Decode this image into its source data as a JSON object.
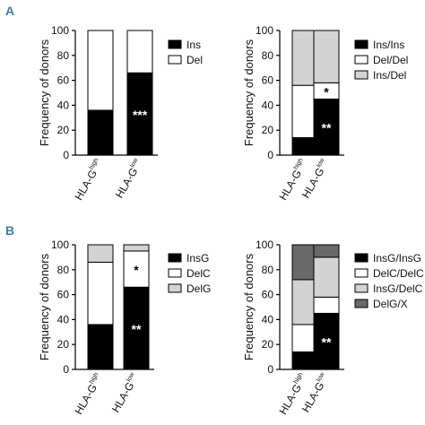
{
  "panels": [
    {
      "letter": "A"
    },
    {
      "letter": "B"
    }
  ],
  "colors": {
    "Ins": "#000000",
    "Del": "#ffffff",
    "Ins/Ins": "#000000",
    "Del/Del": "#ffffff",
    "Ins/Del": "#d3d3d3",
    "InsG": "#000000",
    "DelC": "#ffffff",
    "DelG": "#d3d3d3",
    "InsG/InsG": "#000000",
    "DelC/DelC": "#ffffff",
    "InsG/DelC": "#d3d3d3",
    "DelG/X": "#696969"
  },
  "chart_data": [
    {
      "type": "bar",
      "stacked": true,
      "panel": "A",
      "ylabel": "Frequency of donors",
      "ylim": [
        0,
        100
      ],
      "yticks": [
        0,
        20,
        40,
        60,
        80,
        100
      ],
      "categories": [
        {
          "base": "HLA-G",
          "sup": "high"
        },
        {
          "base": "HLA-G",
          "sup": "low"
        }
      ],
      "series": [
        {
          "name": "Ins",
          "values": [
            36,
            66
          ]
        },
        {
          "name": "Del",
          "values": [
            64,
            34
          ]
        }
      ],
      "annotations": [
        {
          "category": 1,
          "series": "Ins",
          "text": "***"
        }
      ],
      "legend": [
        "Ins",
        "Del"
      ]
    },
    {
      "type": "bar",
      "stacked": true,
      "panel": "A",
      "ylabel": "Frequency of donors",
      "ylim": [
        0,
        100
      ],
      "yticks": [
        0,
        20,
        40,
        60,
        80,
        100
      ],
      "categories": [
        {
          "base": "HLA-G",
          "sup": "high"
        },
        {
          "base": "HLA-G",
          "sup": "low"
        }
      ],
      "series": [
        {
          "name": "Ins/Ins",
          "values": [
            14,
            45
          ]
        },
        {
          "name": "Del/Del",
          "values": [
            42,
            13
          ]
        },
        {
          "name": "Ins/Del",
          "values": [
            44,
            42
          ]
        }
      ],
      "annotations": [
        {
          "category": 1,
          "series": "Ins/Ins",
          "text": "**"
        },
        {
          "category": 1,
          "series": "Del/Del",
          "text": "*"
        }
      ],
      "legend": [
        "Ins/Ins",
        "Del/Del",
        "Ins/Del"
      ]
    },
    {
      "type": "bar",
      "stacked": true,
      "panel": "B",
      "ylabel": "Frequency of donors",
      "ylim": [
        0,
        100
      ],
      "yticks": [
        0,
        20,
        40,
        60,
        80,
        100
      ],
      "categories": [
        {
          "base": "HLA-G",
          "sup": "high"
        },
        {
          "base": "HLA-G",
          "sup": "low"
        }
      ],
      "series": [
        {
          "name": "InsG",
          "values": [
            36,
            66
          ]
        },
        {
          "name": "DelC",
          "values": [
            50,
            29
          ]
        },
        {
          "name": "DelG",
          "values": [
            14,
            5
          ]
        }
      ],
      "annotations": [
        {
          "category": 1,
          "series": "InsG",
          "text": "**"
        },
        {
          "category": 1,
          "series": "DelC",
          "text": "*"
        }
      ],
      "legend": [
        "InsG",
        "DelC",
        "DelG"
      ]
    },
    {
      "type": "bar",
      "stacked": true,
      "panel": "B",
      "ylabel": "Frequency of donors",
      "ylim": [
        0,
        100
      ],
      "yticks": [
        0,
        20,
        40,
        60,
        80,
        100
      ],
      "categories": [
        {
          "base": "HLA-G",
          "sup": "high"
        },
        {
          "base": "HLA-G",
          "sup": "low"
        }
      ],
      "series": [
        {
          "name": "InsG/InsG",
          "values": [
            14,
            45
          ]
        },
        {
          "name": "DelC/DelC",
          "values": [
            22,
            13
          ]
        },
        {
          "name": "InsG/DelC",
          "values": [
            36,
            32
          ]
        },
        {
          "name": "DelG/X",
          "values": [
            28,
            10
          ]
        }
      ],
      "annotations": [
        {
          "category": 1,
          "series": "InsG/InsG",
          "text": "**"
        }
      ],
      "legend": [
        "InsG/InsG",
        "DelC/DelC",
        "InsG/DelC",
        "DelG/X"
      ]
    }
  ]
}
